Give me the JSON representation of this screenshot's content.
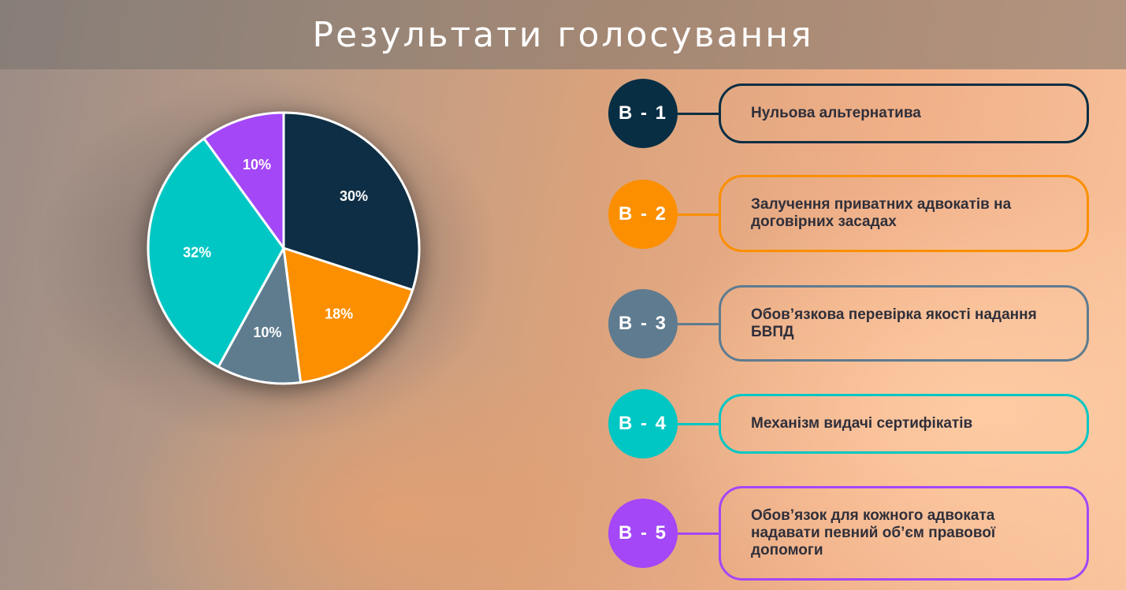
{
  "title": "Результати голосування",
  "chart_data": {
    "type": "pie",
    "values": [
      30,
      18,
      10,
      32,
      10
    ],
    "labels": [
      "30%",
      "18%",
      "10%",
      "32%",
      "10%"
    ],
    "colors": [
      "#082e44",
      "#fb8f00",
      "#5f7b8f",
      "#00c7c4",
      "#a347f7"
    ],
    "start_angle_deg": 0,
    "direction": "clockwise"
  },
  "options": [
    {
      "code": "В - 1",
      "text": "Нульова альтернатива",
      "color": "#082e44"
    },
    {
      "code": "В - 2",
      "text": "Залучення приватних адвокатів на договірних засадах",
      "color": "#fb8f00"
    },
    {
      "code": "В - 3",
      "text": "Обов’язкова перевірка якості надання БВПД",
      "color": "#5f7b8f"
    },
    {
      "code": "В - 4",
      "text": "Механізм видачі сертифікатів",
      "color": "#00c7c4"
    },
    {
      "code": "В - 5",
      "text": "Обов’язок для кожного адвоката надавати певний об’єм правової допомоги",
      "color": "#a347f7"
    }
  ]
}
